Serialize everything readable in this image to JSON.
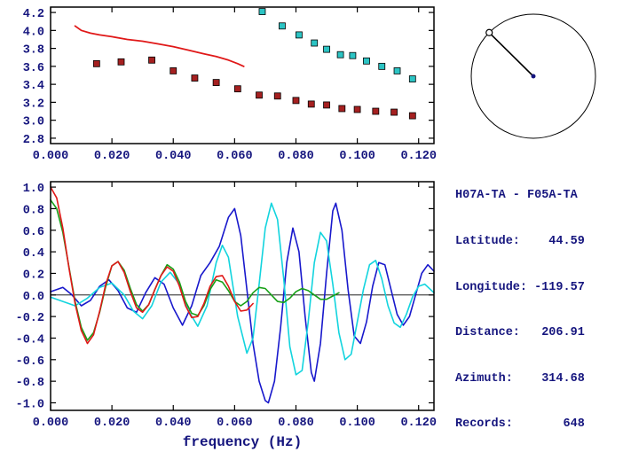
{
  "figure": {
    "background": "#ffffff",
    "text_color": "#15157e",
    "axis_color": "#000000"
  },
  "station_info": {
    "title": "H07A-TA - F05A-TA",
    "fields": [
      {
        "label": "Latitude:",
        "value": "44.59"
      },
      {
        "label": "Longitude:",
        "value": "-119.57"
      },
      {
        "label": "Distance:",
        "value": "206.91"
      },
      {
        "label": "Azimuth:",
        "value": "314.68"
      },
      {
        "label": "Records:",
        "value": "648"
      }
    ]
  },
  "azimuth_dial": {
    "azimuth_deg": 314.68,
    "ring_color": "#000000",
    "needle_color": "#000000",
    "center_dot_color": "#15157e"
  },
  "chart_data": [
    {
      "id": "dispersion",
      "type": "scatter",
      "title": "",
      "xlabel": "",
      "ylabel": "",
      "grid": false,
      "legend": "none",
      "xlim": [
        0,
        0.125
      ],
      "ylim": [
        2.74,
        4.26
      ],
      "x_ticks": [
        0.0,
        0.02,
        0.04,
        0.06,
        0.08,
        0.1,
        0.12
      ],
      "x_tick_labels": [
        "0.000",
        "0.020",
        "0.040",
        "0.060",
        "0.080",
        "0.100",
        "0.120"
      ],
      "y_ticks": [
        2.8,
        3.0,
        3.2,
        3.4,
        3.6,
        3.8,
        4.0,
        4.2
      ],
      "y_tick_labels": [
        "2.8",
        "3.0",
        "3.2",
        "3.4",
        "3.6",
        "3.8",
        "4.0",
        "4.2"
      ],
      "series": [
        {
          "name": "red-reference-curve",
          "kind": "line",
          "color": "#e01818",
          "width": 1.8,
          "points": [
            [
              0.008,
              4.05
            ],
            [
              0.01,
              4.0
            ],
            [
              0.013,
              3.97
            ],
            [
              0.016,
              3.95
            ],
            [
              0.02,
              3.93
            ],
            [
              0.025,
              3.9
            ],
            [
              0.03,
              3.88
            ],
            [
              0.035,
              3.85
            ],
            [
              0.04,
              3.82
            ],
            [
              0.045,
              3.78
            ],
            [
              0.05,
              3.74
            ],
            [
              0.054,
              3.71
            ],
            [
              0.058,
              3.67
            ],
            [
              0.061,
              3.63
            ],
            [
              0.063,
              3.6
            ]
          ]
        },
        {
          "name": "dark-red-squares",
          "kind": "squares",
          "color": "#a52020",
          "size": 7,
          "err": 0.035,
          "points": [
            [
              0.015,
              3.63
            ],
            [
              0.023,
              3.65
            ],
            [
              0.033,
              3.67
            ],
            [
              0.04,
              3.55
            ],
            [
              0.047,
              3.47
            ],
            [
              0.054,
              3.42
            ],
            [
              0.061,
              3.35
            ],
            [
              0.068,
              3.28
            ],
            [
              0.074,
              3.27
            ],
            [
              0.08,
              3.22
            ],
            [
              0.085,
              3.18
            ],
            [
              0.09,
              3.17
            ],
            [
              0.095,
              3.13
            ],
            [
              0.1,
              3.12
            ],
            [
              0.106,
              3.1
            ],
            [
              0.112,
              3.09
            ],
            [
              0.118,
              3.05
            ]
          ]
        },
        {
          "name": "cyan-squares",
          "kind": "squares",
          "color": "#2cc4c4",
          "size": 7,
          "points": [
            [
              0.069,
              4.21
            ],
            [
              0.0755,
              4.05
            ],
            [
              0.081,
              3.95
            ],
            [
              0.086,
              3.86
            ],
            [
              0.09,
              3.79
            ],
            [
              0.0945,
              3.73
            ],
            [
              0.0985,
              3.72
            ],
            [
              0.103,
              3.66
            ],
            [
              0.108,
              3.6
            ],
            [
              0.113,
              3.55
            ],
            [
              0.118,
              3.46
            ]
          ]
        }
      ]
    },
    {
      "id": "waveforms",
      "type": "line",
      "title": "",
      "xlabel": "frequency (Hz)",
      "ylabel": "",
      "grid": false,
      "legend": "none",
      "zero_line": true,
      "xlim": [
        0,
        0.125
      ],
      "ylim": [
        -1.07,
        1.05
      ],
      "x_ticks": [
        0.0,
        0.02,
        0.04,
        0.06,
        0.08,
        0.1,
        0.12
      ],
      "x_tick_labels": [
        "0.000",
        "0.020",
        "0.040",
        "0.060",
        "0.080",
        "0.100",
        "0.120"
      ],
      "y_ticks": [
        -1.0,
        -0.8,
        -0.6,
        -0.4,
        -0.2,
        0.0,
        0.2,
        0.4,
        0.6,
        0.8,
        1.0
      ],
      "y_tick_labels": [
        "-1.0",
        "-0.8",
        "-0.6",
        "-0.4",
        "-0.2",
        "0.0",
        "0.2",
        "0.4",
        "0.6",
        "0.8",
        "1.0"
      ],
      "series": [
        {
          "name": "blue-wave",
          "kind": "line",
          "color": "#1818cc",
          "width": 1.6,
          "points": [
            [
              0.0,
              0.03
            ],
            [
              0.004,
              0.07
            ],
            [
              0.007,
              0.0
            ],
            [
              0.01,
              -0.1
            ],
            [
              0.013,
              -0.05
            ],
            [
              0.016,
              0.08
            ],
            [
              0.019,
              0.14
            ],
            [
              0.022,
              0.04
            ],
            [
              0.025,
              -0.12
            ],
            [
              0.028,
              -0.16
            ],
            [
              0.031,
              0.02
            ],
            [
              0.034,
              0.16
            ],
            [
              0.037,
              0.1
            ],
            [
              0.04,
              -0.12
            ],
            [
              0.043,
              -0.28
            ],
            [
              0.046,
              -0.1
            ],
            [
              0.049,
              0.18
            ],
            [
              0.052,
              0.3
            ],
            [
              0.055,
              0.45
            ],
            [
              0.058,
              0.72
            ],
            [
              0.06,
              0.8
            ],
            [
              0.062,
              0.55
            ],
            [
              0.064,
              0.05
            ],
            [
              0.066,
              -0.45
            ],
            [
              0.068,
              -0.8
            ],
            [
              0.07,
              -0.98
            ],
            [
              0.071,
              -1.0
            ],
            [
              0.073,
              -0.8
            ],
            [
              0.075,
              -0.3
            ],
            [
              0.077,
              0.3
            ],
            [
              0.079,
              0.62
            ],
            [
              0.081,
              0.4
            ],
            [
              0.083,
              -0.2
            ],
            [
              0.085,
              -0.72
            ],
            [
              0.086,
              -0.8
            ],
            [
              0.088,
              -0.45
            ],
            [
              0.09,
              0.2
            ],
            [
              0.092,
              0.78
            ],
            [
              0.093,
              0.85
            ],
            [
              0.095,
              0.6
            ],
            [
              0.097,
              0.05
            ],
            [
              0.099,
              -0.38
            ],
            [
              0.101,
              -0.45
            ],
            [
              0.103,
              -0.25
            ],
            [
              0.105,
              0.08
            ],
            [
              0.107,
              0.3
            ],
            [
              0.109,
              0.28
            ],
            [
              0.111,
              0.05
            ],
            [
              0.113,
              -0.18
            ],
            [
              0.115,
              -0.28
            ],
            [
              0.117,
              -0.2
            ],
            [
              0.119,
              0.0
            ],
            [
              0.121,
              0.2
            ],
            [
              0.123,
              0.28
            ],
            [
              0.125,
              0.22
            ]
          ]
        },
        {
          "name": "cyan-wave",
          "kind": "line",
          "color": "#12d4de",
          "width": 1.6,
          "points": [
            [
              0.0,
              -0.02
            ],
            [
              0.004,
              -0.06
            ],
            [
              0.008,
              -0.1
            ],
            [
              0.012,
              -0.03
            ],
            [
              0.016,
              0.07
            ],
            [
              0.02,
              0.11
            ],
            [
              0.024,
              0.0
            ],
            [
              0.027,
              -0.15
            ],
            [
              0.03,
              -0.22
            ],
            [
              0.033,
              -0.1
            ],
            [
              0.036,
              0.12
            ],
            [
              0.039,
              0.21
            ],
            [
              0.042,
              0.1
            ],
            [
              0.045,
              -0.15
            ],
            [
              0.048,
              -0.29
            ],
            [
              0.051,
              -0.1
            ],
            [
              0.054,
              0.3
            ],
            [
              0.056,
              0.46
            ],
            [
              0.058,
              0.35
            ],
            [
              0.061,
              -0.2
            ],
            [
              0.064,
              -0.54
            ],
            [
              0.066,
              -0.4
            ],
            [
              0.068,
              0.1
            ],
            [
              0.07,
              0.62
            ],
            [
              0.072,
              0.85
            ],
            [
              0.074,
              0.7
            ],
            [
              0.076,
              0.15
            ],
            [
              0.078,
              -0.48
            ],
            [
              0.08,
              -0.74
            ],
            [
              0.082,
              -0.7
            ],
            [
              0.084,
              -0.25
            ],
            [
              0.086,
              0.3
            ],
            [
              0.088,
              0.58
            ],
            [
              0.09,
              0.5
            ],
            [
              0.092,
              0.1
            ],
            [
              0.094,
              -0.35
            ],
            [
              0.096,
              -0.6
            ],
            [
              0.098,
              -0.55
            ],
            [
              0.1,
              -0.25
            ],
            [
              0.102,
              0.05
            ],
            [
              0.104,
              0.28
            ],
            [
              0.106,
              0.32
            ],
            [
              0.108,
              0.15
            ],
            [
              0.11,
              -0.1
            ],
            [
              0.112,
              -0.26
            ],
            [
              0.114,
              -0.3
            ],
            [
              0.116,
              -0.18
            ],
            [
              0.118,
              -0.02
            ],
            [
              0.12,
              0.08
            ],
            [
              0.122,
              0.1
            ],
            [
              0.125,
              0.02
            ]
          ]
        },
        {
          "name": "green-wave",
          "kind": "line",
          "color": "#18a018",
          "width": 1.6,
          "points": [
            [
              0.0,
              0.88
            ],
            [
              0.002,
              0.8
            ],
            [
              0.004,
              0.58
            ],
            [
              0.006,
              0.26
            ],
            [
              0.008,
              -0.06
            ],
            [
              0.01,
              -0.3
            ],
            [
              0.012,
              -0.42
            ],
            [
              0.014,
              -0.35
            ],
            [
              0.016,
              -0.16
            ],
            [
              0.018,
              0.08
            ],
            [
              0.02,
              0.27
            ],
            [
              0.022,
              0.31
            ],
            [
              0.024,
              0.23
            ],
            [
              0.026,
              0.06
            ],
            [
              0.028,
              -0.09
            ],
            [
              0.03,
              -0.15
            ],
            [
              0.032,
              -0.09
            ],
            [
              0.034,
              0.05
            ],
            [
              0.036,
              0.18
            ],
            [
              0.038,
              0.28
            ],
            [
              0.04,
              0.24
            ],
            [
              0.042,
              0.12
            ],
            [
              0.044,
              -0.06
            ],
            [
              0.046,
              -0.17
            ],
            [
              0.048,
              -0.19
            ],
            [
              0.05,
              -0.1
            ],
            [
              0.052,
              0.05
            ],
            [
              0.054,
              0.14
            ],
            [
              0.056,
              0.12
            ],
            [
              0.058,
              0.04
            ],
            [
              0.06,
              -0.06
            ],
            [
              0.062,
              -0.1
            ],
            [
              0.064,
              -0.06
            ],
            [
              0.066,
              0.02
            ],
            [
              0.068,
              0.07
            ],
            [
              0.07,
              0.06
            ],
            [
              0.072,
              0.0
            ],
            [
              0.074,
              -0.06
            ],
            [
              0.076,
              -0.07
            ],
            [
              0.078,
              -0.03
            ],
            [
              0.08,
              0.03
            ],
            [
              0.082,
              0.06
            ],
            [
              0.084,
              0.04
            ],
            [
              0.086,
              0.0
            ],
            [
              0.088,
              -0.04
            ],
            [
              0.09,
              -0.04
            ],
            [
              0.092,
              -0.01
            ],
            [
              0.094,
              0.02
            ]
          ]
        },
        {
          "name": "red-wave",
          "kind": "line",
          "color": "#e01818",
          "width": 1.6,
          "points": [
            [
              0.0,
              1.0
            ],
            [
              0.002,
              0.9
            ],
            [
              0.004,
              0.62
            ],
            [
              0.006,
              0.25
            ],
            [
              0.008,
              -0.08
            ],
            [
              0.01,
              -0.33
            ],
            [
              0.012,
              -0.45
            ],
            [
              0.014,
              -0.37
            ],
            [
              0.016,
              -0.15
            ],
            [
              0.018,
              0.1
            ],
            [
              0.02,
              0.27
            ],
            [
              0.022,
              0.31
            ],
            [
              0.024,
              0.21
            ],
            [
              0.026,
              0.03
            ],
            [
              0.028,
              -0.12
            ],
            [
              0.03,
              -0.16
            ],
            [
              0.032,
              -0.09
            ],
            [
              0.034,
              0.05
            ],
            [
              0.036,
              0.18
            ],
            [
              0.038,
              0.26
            ],
            [
              0.04,
              0.22
            ],
            [
              0.042,
              0.08
            ],
            [
              0.044,
              -0.1
            ],
            [
              0.046,
              -0.21
            ],
            [
              0.048,
              -0.2
            ],
            [
              0.05,
              -0.08
            ],
            [
              0.052,
              0.08
            ],
            [
              0.054,
              0.17
            ],
            [
              0.056,
              0.18
            ],
            [
              0.058,
              0.08
            ],
            [
              0.06,
              -0.06
            ],
            [
              0.062,
              -0.15
            ],
            [
              0.064,
              -0.14
            ],
            [
              0.066,
              -0.08
            ]
          ]
        }
      ]
    }
  ]
}
